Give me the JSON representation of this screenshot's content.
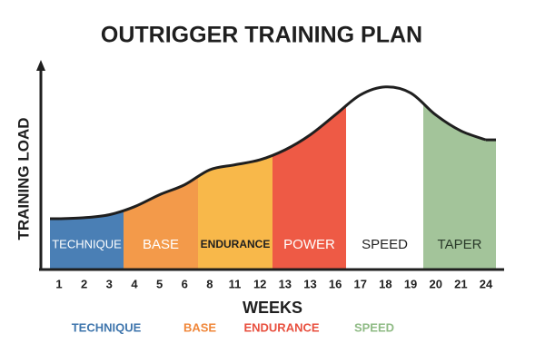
{
  "chart_data": {
    "type": "area",
    "title": "OUTRIGGER TRAINING PLAN",
    "x_label": "WEEKS",
    "y_label": "TRAINING LOAD",
    "categories": [
      "1",
      "2",
      "3",
      "4",
      "5",
      "6",
      "8",
      "11",
      "12",
      "13",
      "13",
      "16",
      "17",
      "18",
      "19",
      "20",
      "21",
      "24"
    ],
    "values": [
      25,
      25.5,
      27,
      31,
      37,
      42,
      49.5,
      52,
      54.5,
      59.5,
      67,
      77,
      87,
      91,
      88,
      77,
      69,
      64.5
    ],
    "ylim": [
      0,
      100
    ],
    "phases": [
      {
        "name": "TECHNIQUE",
        "color": "#4a7fb5"
      },
      {
        "name": "BASE",
        "color": "#f39a4a"
      },
      {
        "name": "ENDURANCE",
        "color": "#f8b84a"
      },
      {
        "name": "POWER",
        "color": "#ee5a45"
      },
      {
        "name": "SPEED",
        "color": "#ffffff"
      },
      {
        "name": "TAPER",
        "color": "#a3c49a"
      }
    ],
    "legend": [
      {
        "label": "TECHNIQUE",
        "color": "#3f76ad"
      },
      {
        "label": "BASE",
        "color": "#f0873a"
      },
      {
        "label": "ENDURANCE",
        "color": "#e8503f"
      },
      {
        "label": "SPEED",
        "color": "#8fbb85"
      }
    ]
  }
}
